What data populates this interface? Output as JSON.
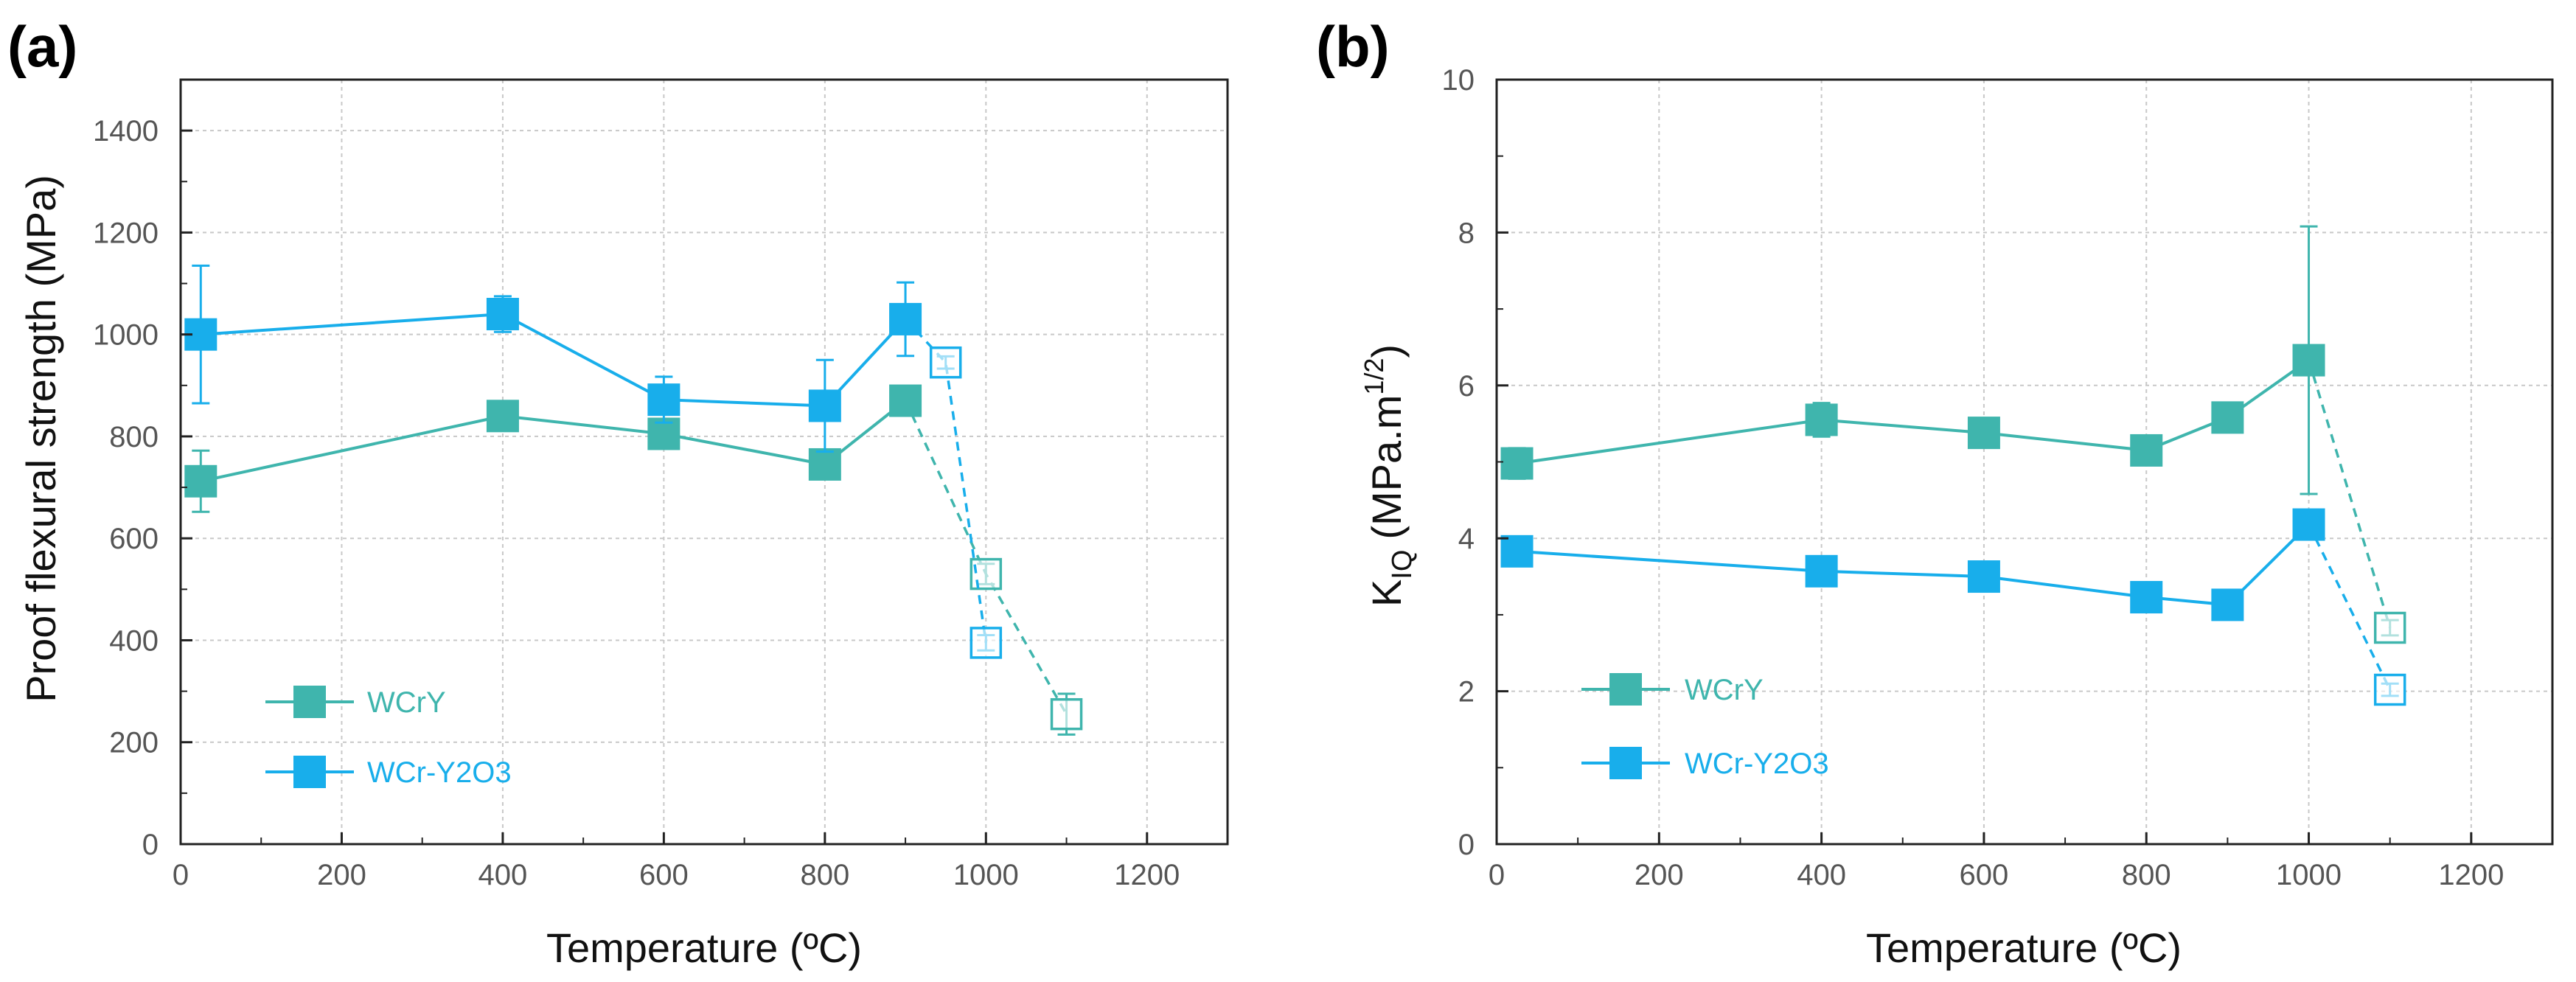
{
  "chart_data": [
    {
      "type": "line",
      "panel_label": "(a)",
      "xlabel": "Temperature (ºC)",
      "ylabel": "Proof flexural strength (MPa)",
      "xlim": [
        0,
        1300
      ],
      "ylim": [
        0,
        1500
      ],
      "xticks": [
        0,
        200,
        400,
        600,
        800,
        1000,
        1200
      ],
      "yticks": [
        0,
        200,
        400,
        600,
        800,
        1000,
        1200,
        1400
      ],
      "grid": true,
      "legend_position": "bottom-left",
      "series": [
        {
          "name": "WCrY",
          "color": "#3fb5ad",
          "marker": "filled-square",
          "points": [
            {
              "x": 25,
              "y": 712,
              "err": 60
            },
            {
              "x": 400,
              "y": 840,
              "err": 12
            },
            {
              "x": 600,
              "y": 805,
              "err": 20
            },
            {
              "x": 800,
              "y": 745,
              "err": 10
            },
            {
              "x": 900,
              "y": 870,
              "err": 10
            }
          ],
          "open_points": [
            {
              "x": 1000,
              "y": 530,
              "err": 20
            },
            {
              "x": 1100,
              "y": 255,
              "err": 40
            }
          ]
        },
        {
          "name": "WCr-Y2O3",
          "color": "#18aeeb",
          "marker": "filled-square",
          "points": [
            {
              "x": 25,
              "y": 1000,
              "err": 135
            },
            {
              "x": 400,
              "y": 1040,
              "err": 35
            },
            {
              "x": 600,
              "y": 872,
              "err": 45
            },
            {
              "x": 800,
              "y": 860,
              "err": 90
            },
            {
              "x": 900,
              "y": 1030,
              "err": 72
            }
          ],
          "open_points": [
            {
              "x": 950,
              "y": 945,
              "err": 12
            },
            {
              "x": 1000,
              "y": 395,
              "err": 15
            }
          ]
        }
      ]
    },
    {
      "type": "line",
      "panel_label": "(b)",
      "xlabel": "Temperature (ºC)",
      "ylabel_main": "K",
      "ylabel_sub": "IQ",
      "ylabel_unit": "(MPa.m",
      "ylabel_sup": "1/2",
      "ylabel_close": ")",
      "xlim": [
        0,
        1300
      ],
      "ylim": [
        0,
        10
      ],
      "xticks": [
        0,
        200,
        400,
        600,
        800,
        1000,
        1200
      ],
      "yticks": [
        0,
        2,
        4,
        6,
        8,
        10
      ],
      "grid": true,
      "legend_position": "bottom-left",
      "series": [
        {
          "name": "WCrY",
          "color": "#3fb5ad",
          "marker": "filled-square",
          "points": [
            {
              "x": 25,
              "y": 4.98,
              "err": 0.2
            },
            {
              "x": 400,
              "y": 5.55,
              "err": 0.22
            },
            {
              "x": 600,
              "y": 5.38,
              "err": 0.12
            },
            {
              "x": 800,
              "y": 5.15,
              "err": 0.08
            },
            {
              "x": 900,
              "y": 5.58,
              "err": 0.08
            },
            {
              "x": 1000,
              "y": 6.33,
              "err": 1.75
            }
          ],
          "open_points": [
            {
              "x": 1100,
              "y": 2.83,
              "err": 0.1
            }
          ]
        },
        {
          "name": "WCr-Y2O3",
          "color": "#18aeeb",
          "marker": "filled-square",
          "points": [
            {
              "x": 25,
              "y": 3.83,
              "err": 0.06
            },
            {
              "x": 400,
              "y": 3.57,
              "err": 0.06
            },
            {
              "x": 600,
              "y": 3.5,
              "err": 0.06
            },
            {
              "x": 800,
              "y": 3.23,
              "err": 0.06
            },
            {
              "x": 900,
              "y": 3.13,
              "err": 0.1
            },
            {
              "x": 1000,
              "y": 4.18,
              "err": 0.15
            }
          ],
          "open_points": [
            {
              "x": 1100,
              "y": 2.02,
              "err": 0.08
            }
          ]
        }
      ]
    }
  ]
}
